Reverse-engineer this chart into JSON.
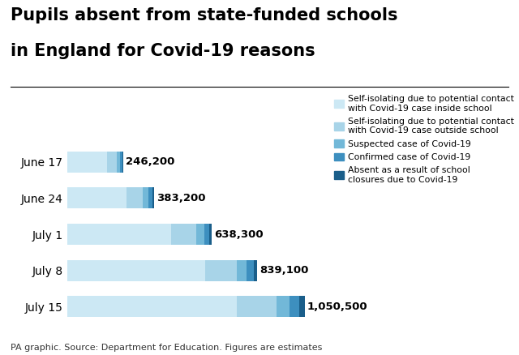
{
  "categories": [
    "July 15",
    "July 8",
    "July 1",
    "June 24",
    "June 17"
  ],
  "totals": [
    "1,050,500",
    "839,100",
    "638,300",
    "383,200",
    "246,200"
  ],
  "segments": {
    "inside": [
      750000,
      610000,
      460000,
      260000,
      175000
    ],
    "outside": [
      175000,
      140000,
      110000,
      75000,
      42000
    ],
    "suspected": [
      60000,
      45000,
      35000,
      25000,
      16000
    ],
    "confirmed": [
      42000,
      30000,
      22000,
      17000,
      10000
    ],
    "closures": [
      23500,
      14100,
      11300,
      6200,
      3200
    ]
  },
  "colors": {
    "inside": "#cce8f4",
    "outside": "#a8d4e8",
    "suspected": "#72b8d8",
    "confirmed": "#3d8fbf",
    "closures": "#1a5e8a"
  },
  "legend_labels": [
    "Self-isolating due to potential contact\nwith Covid-19 case inside school",
    "Self-isolating due to potential contact\nwith Covid-19 case outside school",
    "Suspected case of Covid-19",
    "Confirmed case of Covid-19",
    "Absent as a result of school\nclosures due to Covid-19"
  ],
  "title_line1": "Pupils absent from state-funded schools",
  "title_line2": "in England for Covid-19 reasons",
  "source": "PA graphic. Source: Department for Education. Figures are estimates",
  "title_fontsize": 15,
  "bar_label_fontsize": 9.5,
  "ytick_fontsize": 10,
  "source_fontsize": 8,
  "legend_fontsize": 7.8
}
